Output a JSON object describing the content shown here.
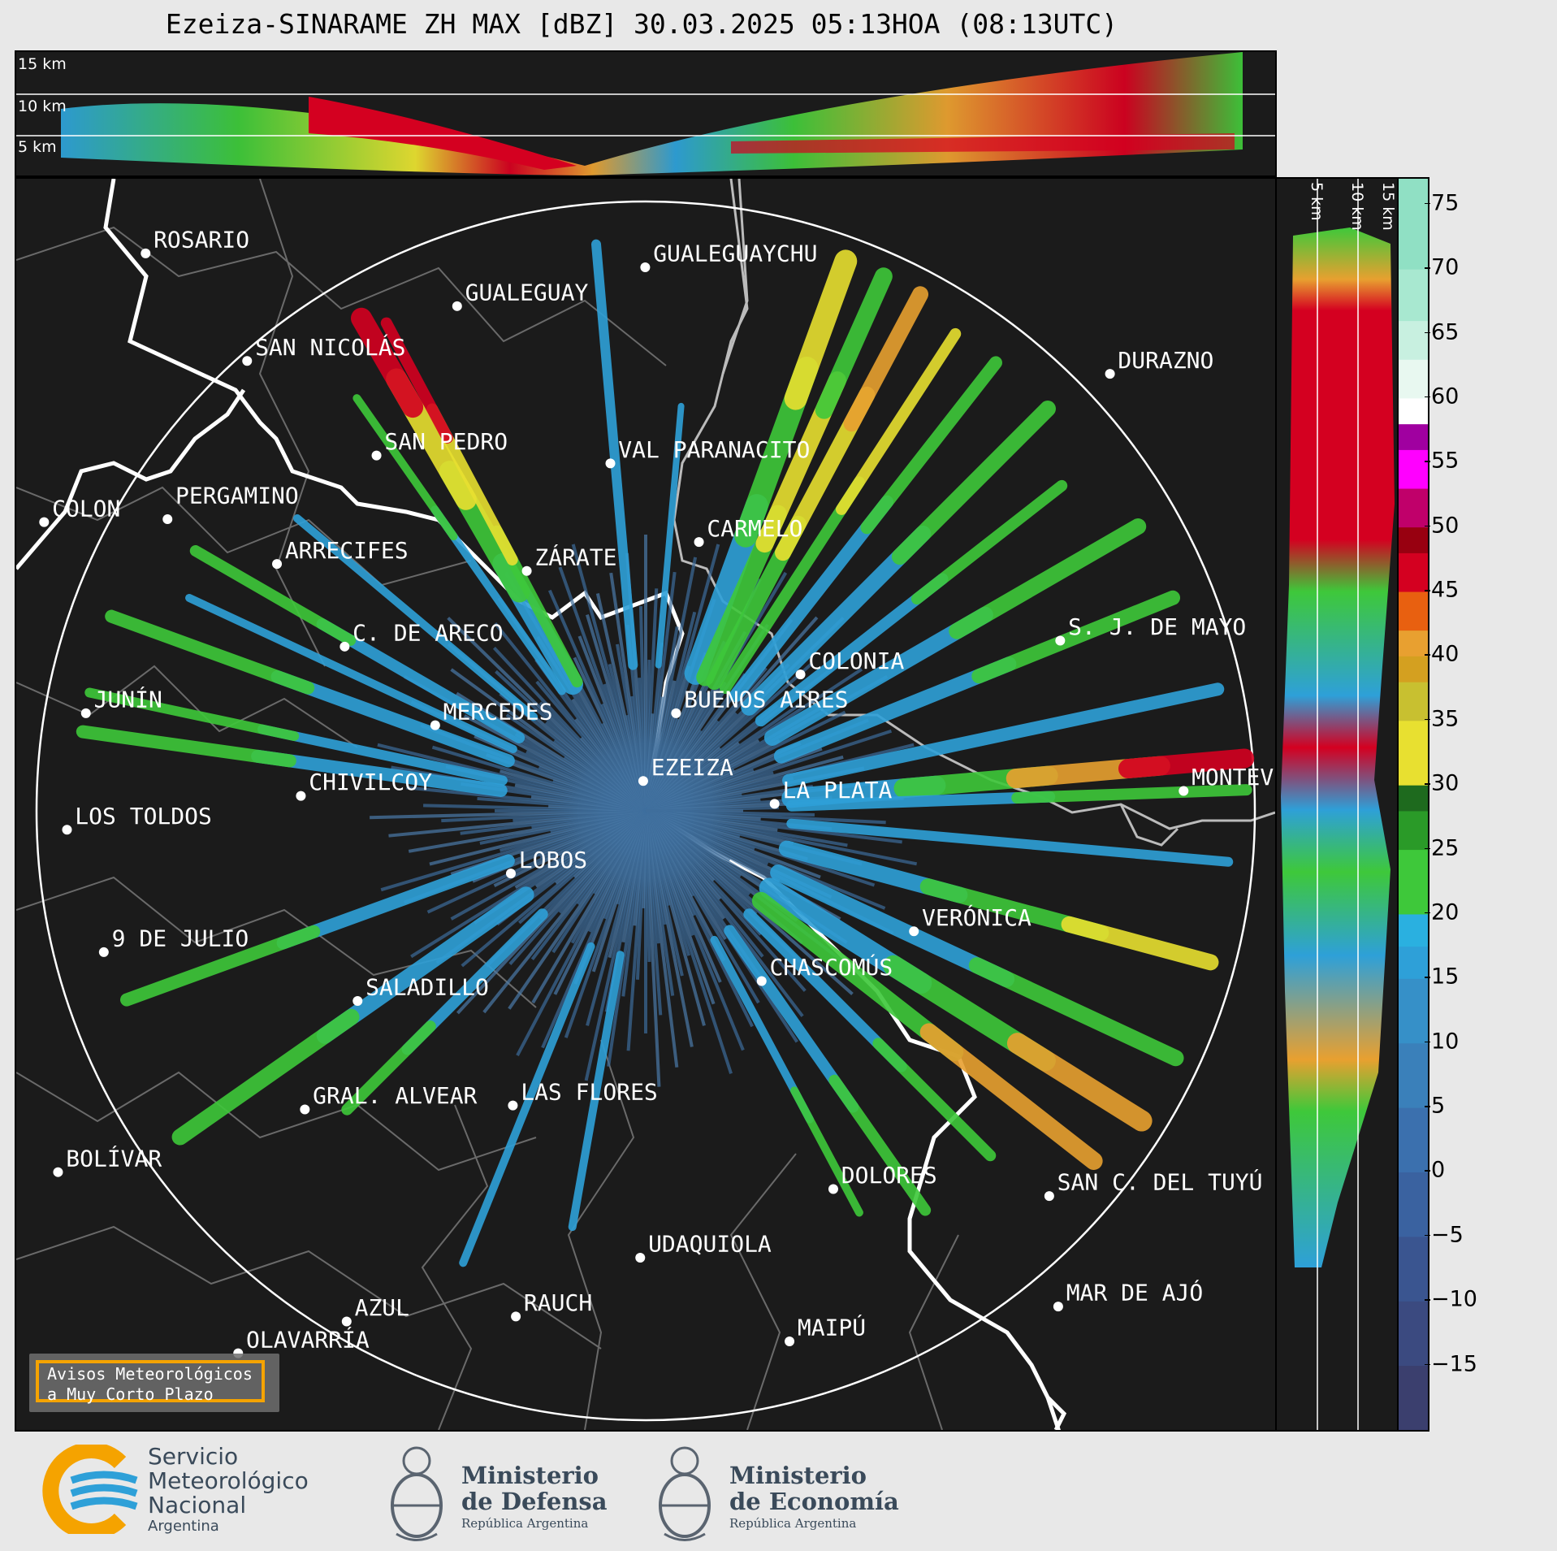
{
  "title": "Ezeiza-SINARAME ZH MAX [dBZ] 30.03.2025 05:13HOA (08:13UTC)",
  "top_panel": {
    "altitude_labels": [
      "15 km",
      "10 km",
      "5 km"
    ]
  },
  "right_panel": {
    "altitude_labels": [
      "5 km",
      "10 km",
      "15 km"
    ]
  },
  "colorbar": {
    "unit": "dBZ",
    "ticks": [
      "75",
      "70",
      "65",
      "60",
      "55",
      "50",
      "45",
      "40",
      "35",
      "30",
      "25",
      "20",
      "15",
      "10",
      "5",
      "0",
      "−5",
      "−10",
      "−15"
    ],
    "tick_values": [
      75,
      70,
      65,
      60,
      55,
      50,
      45,
      40,
      35,
      30,
      25,
      20,
      15,
      10,
      5,
      0,
      -5,
      -10,
      -15
    ],
    "range": [
      -20,
      77
    ]
  },
  "cities": [
    {
      "name": "ROSARIO"
    },
    {
      "name": "GUALEGUAYCHU"
    },
    {
      "name": "GUALEGUAY"
    },
    {
      "name": "SAN NICOLÁS"
    },
    {
      "name": "DURAZNO"
    },
    {
      "name": "SAN PEDRO"
    },
    {
      "name": "VAL PARANACITO"
    },
    {
      "name": "COLON"
    },
    {
      "name": "PERGAMINO"
    },
    {
      "name": "CARMELO"
    },
    {
      "name": "ARRECIFES"
    },
    {
      "name": "ZÁRATE"
    },
    {
      "name": "S. J. DE MAYO"
    },
    {
      "name": "C. DE ARECO"
    },
    {
      "name": "COLONIA"
    },
    {
      "name": "JUNÍN"
    },
    {
      "name": "BUENOS AIRES"
    },
    {
      "name": "MERCEDES"
    },
    {
      "name": "EZEIZA"
    },
    {
      "name": "MONTEV"
    },
    {
      "name": "CHIVILCOY"
    },
    {
      "name": "LA PLATA"
    },
    {
      "name": "LOS TOLDOS"
    },
    {
      "name": "LOBOS"
    },
    {
      "name": "VERÓNICA"
    },
    {
      "name": "9 DE JULIO"
    },
    {
      "name": "CHASCOMÚS"
    },
    {
      "name": "SALADILLO"
    },
    {
      "name": "GRAL. ALVEAR"
    },
    {
      "name": "LAS FLORES"
    },
    {
      "name": "BOLÍVAR"
    },
    {
      "name": "DOLORES"
    },
    {
      "name": "SAN C. DEL TUYÚ"
    },
    {
      "name": "UDAQUIOLA"
    },
    {
      "name": "MAR DE AJÓ"
    },
    {
      "name": "AZUL"
    },
    {
      "name": "RAUCH"
    },
    {
      "name": "OLAVARRÍA"
    },
    {
      "name": "MAIPÚ"
    }
  ],
  "warning_box": {
    "line1": "Avisos Meteorológicos",
    "line2": "a Muy Corto Plazo"
  },
  "logos": {
    "smn": {
      "line1": "Servicio",
      "line2": "Meteorológico",
      "line3": "Nacional",
      "line4": "Argentina"
    },
    "defensa": {
      "line1": "Ministerio",
      "line2": "de Defensa",
      "line3": "República Argentina"
    },
    "economia": {
      "line1": "Ministerio",
      "line2": "de Economía",
      "line3": "República Argentina"
    }
  },
  "colors": {
    "strong_echo": "#d40020",
    "moderate_echo": "#e8e030",
    "weak_echo": "#2ea0d8",
    "light_echo": "#3ec83a",
    "accent_orange": "#f5a300"
  }
}
